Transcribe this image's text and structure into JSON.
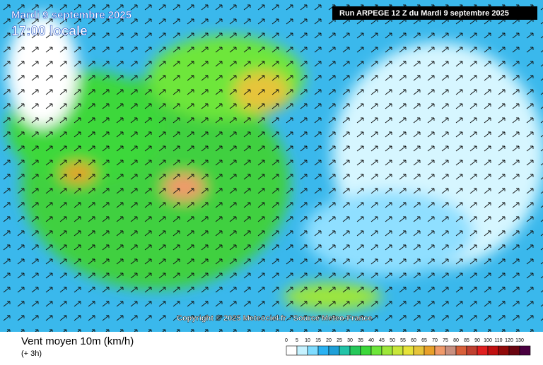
{
  "header": {
    "title": "Mardi 9 septembre 2025",
    "time": "17:00 locale",
    "run": "Run ARPEGE 12 Z du Mardi 9 septembre 2025"
  },
  "credit": "Copyright © 2025 Meteociel.fr - Source Meteo-France",
  "footer": {
    "title": "Vent moyen 10m (km/h)",
    "subtitle": "(+ 3h)"
  },
  "legend": {
    "items": [
      {
        "value": 0,
        "color": "#ffffff"
      },
      {
        "value": 5,
        "color": "#c6f2ff"
      },
      {
        "value": 10,
        "color": "#7fdcff"
      },
      {
        "value": 15,
        "color": "#2ab2f2"
      },
      {
        "value": 20,
        "color": "#1fa0d8"
      },
      {
        "value": 25,
        "color": "#22c4a8"
      },
      {
        "value": 30,
        "color": "#26c85a"
      },
      {
        "value": 35,
        "color": "#3cd83a"
      },
      {
        "value": 40,
        "color": "#6ee63a"
      },
      {
        "value": 45,
        "color": "#9ee63a"
      },
      {
        "value": 50,
        "color": "#c8e63a"
      },
      {
        "value": 55,
        "color": "#e6e23a"
      },
      {
        "value": 60,
        "color": "#e6c43a"
      },
      {
        "value": 65,
        "color": "#e8a02a"
      },
      {
        "value": 70,
        "color": "#f09a6a"
      },
      {
        "value": 75,
        "color": "#c89080"
      },
      {
        "value": 80,
        "color": "#d8603a"
      },
      {
        "value": 85,
        "color": "#c04030"
      },
      {
        "value": 90,
        "color": "#e02020"
      },
      {
        "value": 100,
        "color": "#c01010"
      },
      {
        "value": 110,
        "color": "#900a0a"
      },
      {
        "value": 120,
        "color": "#6a0510"
      },
      {
        "value": 130,
        "color": "#4a0040"
      }
    ]
  }
}
